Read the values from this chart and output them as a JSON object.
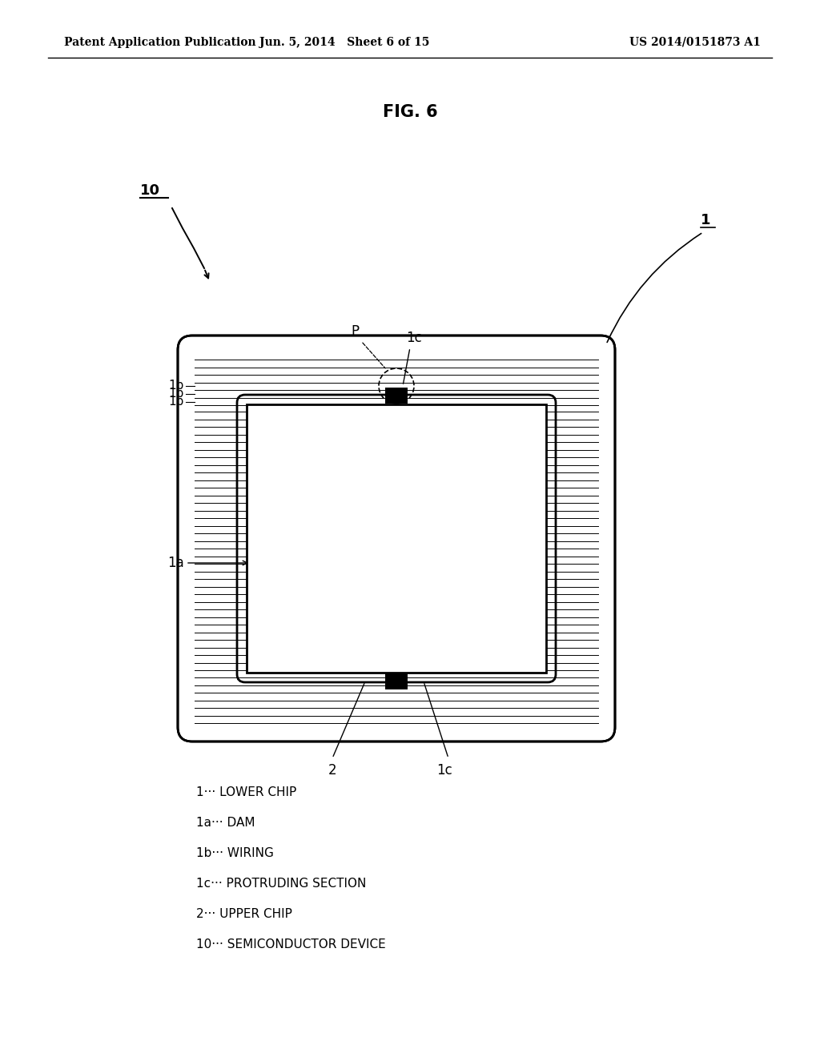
{
  "title": "FIG. 6",
  "header_left": "Patent Application Publication",
  "header_mid": "Jun. 5, 2014   Sheet 6 of 15",
  "header_right": "US 2014/0151873 A1",
  "legend": [
    "1··· LOWER CHIP",
    "1a··· DAM",
    "1b··· WIRING",
    "1c··· PROTRUDING SECTION",
    "2··· UPPER CHIP",
    "10··· SEMICONDUCTOR DEVICE"
  ],
  "bg_color": "#ffffff",
  "line_color": "#000000"
}
